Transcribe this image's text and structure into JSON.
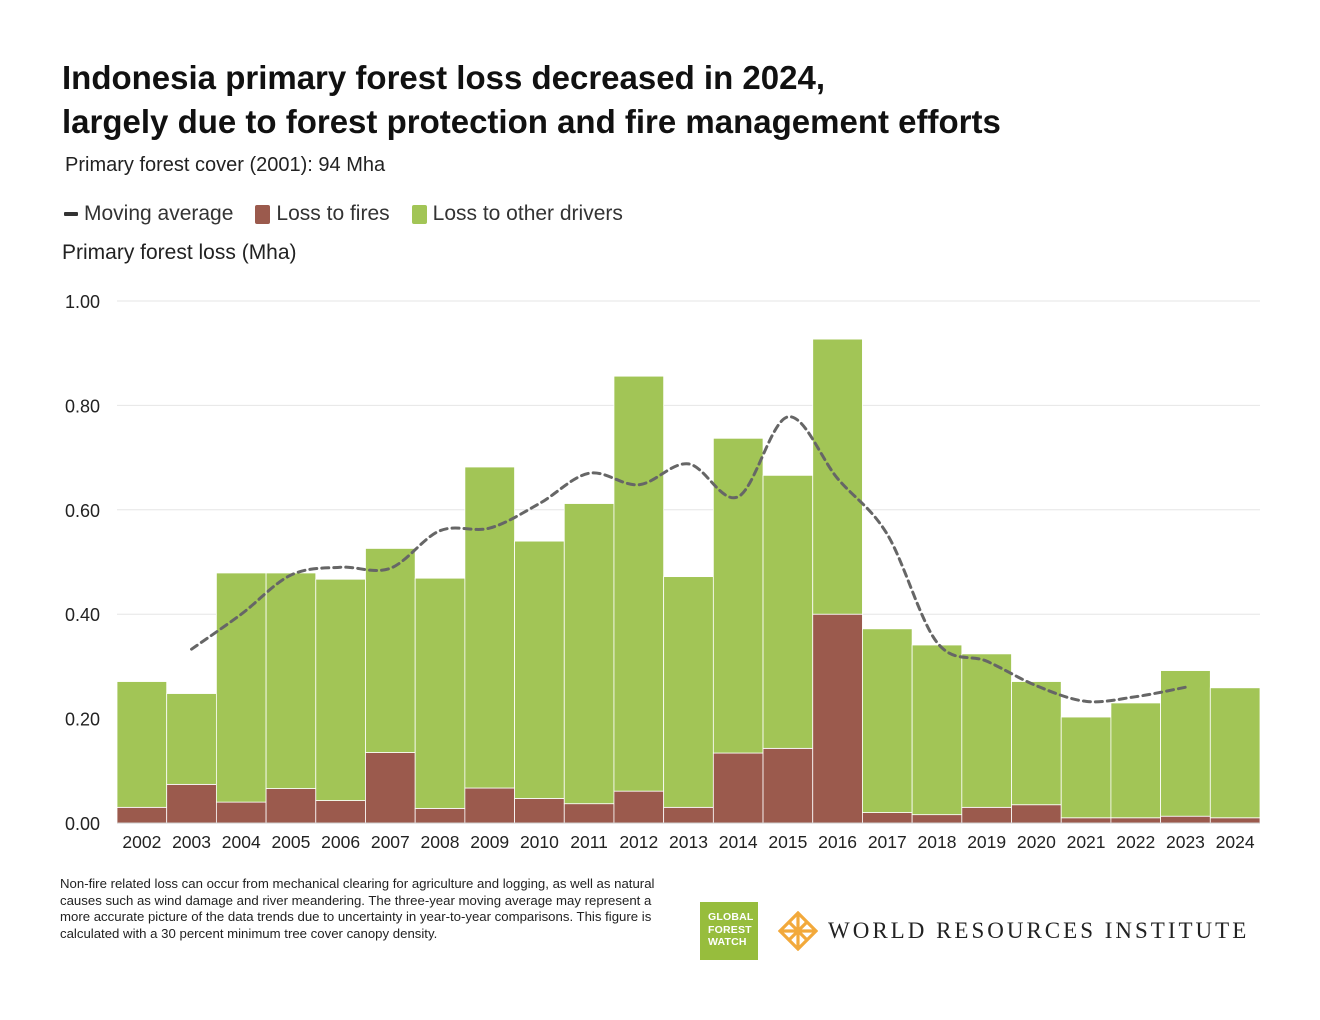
{
  "title": {
    "line1": "Indonesia primary forest loss decreased in 2024,",
    "line2": "largely due to forest protection and fire management efforts"
  },
  "subtitle": "Primary forest cover (2001): 94 Mha",
  "legend": {
    "moving_average": "Moving average",
    "fires": "Loss to fires",
    "other": "Loss to other drivers"
  },
  "colors": {
    "fires": "#9b5a4d",
    "other": "#a2c556",
    "moving_average": "#666666",
    "grid": "#e6e6e6"
  },
  "footnote": "Non-fire related loss can occur from mechanical clearing for agriculture and logging, as well as natural causes such as wind damage and river meandering. The three-year moving average may represent a more accurate picture of the data trends due to uncertainty in year-to-year comparisons. This figure is calculated with a 30 percent minimum tree cover canopy density.",
  "logos": {
    "gfw": [
      "GLOBAL",
      "FOREST",
      "WATCH"
    ],
    "wri": "WORLD RESOURCES INSTITUTE"
  },
  "chart_data": {
    "type": "bar",
    "stacked": true,
    "ylabel": "Primary forest loss (Mha)",
    "ylim": [
      0,
      1.0
    ],
    "yticks": [
      "0.00",
      "0.20",
      "0.40",
      "0.60",
      "0.80",
      "1.00"
    ],
    "grid": true,
    "categories": [
      "2002",
      "2003",
      "2004",
      "2005",
      "2006",
      "2007",
      "2008",
      "2009",
      "2010",
      "2011",
      "2012",
      "2013",
      "2014",
      "2015",
      "2016",
      "2017",
      "2018",
      "2019",
      "2020",
      "2021",
      "2022",
      "2023",
      "2024"
    ],
    "series": [
      {
        "name": "Loss to fires",
        "values": [
          0.03,
          0.074,
          0.04,
          0.066,
          0.043,
          0.135,
          0.028,
          0.067,
          0.047,
          0.037,
          0.061,
          0.03,
          0.134,
          0.143,
          0.4,
          0.02,
          0.016,
          0.03,
          0.035,
          0.01,
          0.01,
          0.013,
          0.01
        ]
      },
      {
        "name": "Loss to other drivers",
        "values": [
          0.241,
          0.174,
          0.439,
          0.413,
          0.424,
          0.391,
          0.441,
          0.615,
          0.493,
          0.575,
          0.795,
          0.442,
          0.603,
          0.523,
          0.527,
          0.352,
          0.325,
          0.294,
          0.236,
          0.193,
          0.22,
          0.279,
          0.249
        ]
      }
    ],
    "moving_average": {
      "name": "Moving average",
      "x": [
        "2003",
        "2004",
        "2005",
        "2006",
        "2007",
        "2008",
        "2009",
        "2010",
        "2011",
        "2012",
        "2013",
        "2014",
        "2015",
        "2016",
        "2017",
        "2018",
        "2019",
        "2020",
        "2021",
        "2022",
        "2023"
      ],
      "values": [
        0.333,
        0.4,
        0.475,
        0.49,
        0.488,
        0.56,
        0.565,
        0.612,
        0.67,
        0.648,
        0.688,
        0.625,
        0.778,
        0.66,
        0.553,
        0.346,
        0.31,
        0.263,
        0.233,
        0.242,
        0.26
      ]
    }
  }
}
